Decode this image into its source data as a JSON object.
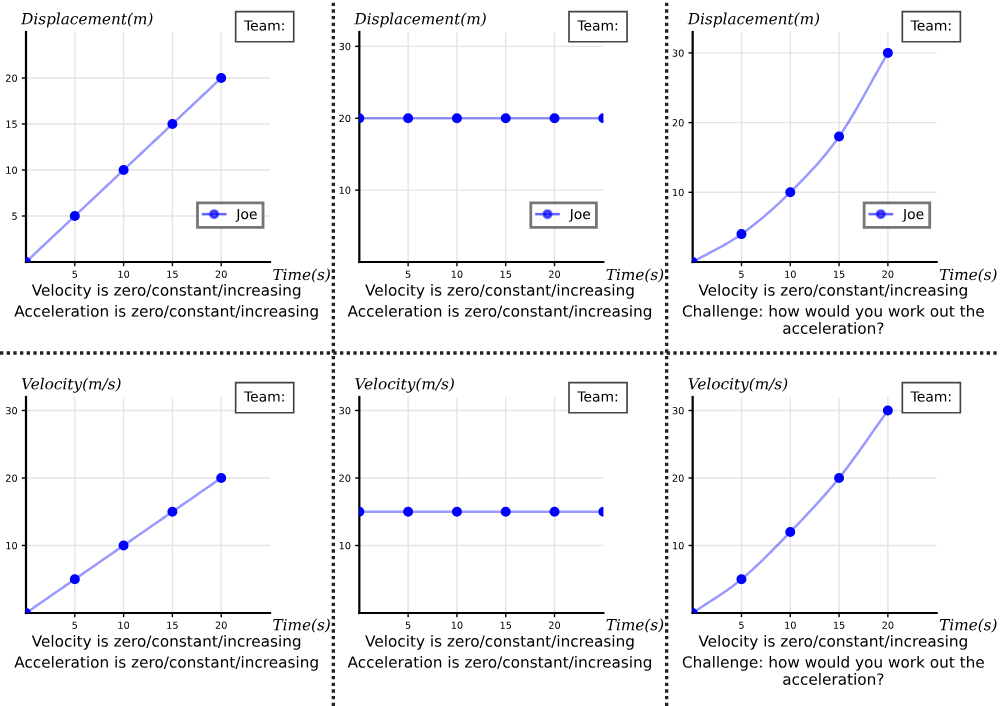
{
  "chart_data": [
    {
      "type": "line",
      "ylabel": "Displacement(m)",
      "xlabel": "Time(s)",
      "x": [
        0,
        5,
        10,
        15,
        20
      ],
      "series": [
        {
          "name": "Joe",
          "color": "#0000ff",
          "values": [
            0,
            5,
            10,
            15,
            20
          ]
        }
      ],
      "xlim": [
        0,
        25
      ],
      "ylim": [
        0,
        25
      ],
      "xticks": [
        5,
        10,
        15,
        20
      ],
      "yticks": [
        5,
        10,
        15,
        20
      ],
      "grid": true,
      "legend": "bottom right",
      "marker": "circle",
      "annotations": [
        "Team:",
        "Velocity is zero/constant/increasing",
        "Acceleration is zero/constant/increasing"
      ]
    },
    {
      "type": "line",
      "ylabel": "Displacement(m)",
      "xlabel": "Time(s)",
      "x": [
        0,
        5,
        10,
        15,
        20,
        25
      ],
      "series": [
        {
          "name": "Joe",
          "color": "#0000ff",
          "values": [
            20,
            20,
            20,
            20,
            20,
            20
          ]
        }
      ],
      "xlim": [
        0,
        25
      ],
      "ylim": [
        0,
        32
      ],
      "xticks": [
        5,
        10,
        15,
        20
      ],
      "yticks": [
        10,
        20,
        30
      ],
      "grid": true,
      "legend": "bottom right",
      "marker": "circle",
      "annotations": [
        "Team:",
        "Velocity is zero/constant/increasing",
        "Acceleration is zero/constant/increasing"
      ]
    },
    {
      "type": "line",
      "ylabel": "Displacement(m)",
      "xlabel": "Time(s)",
      "x": [
        0,
        5,
        10,
        15,
        20
      ],
      "series": [
        {
          "name": "Joe",
          "color": "#0000ff",
          "values": [
            0,
            4,
            10,
            18,
            30
          ]
        }
      ],
      "xlim": [
        0,
        25
      ],
      "ylim": [
        0,
        33
      ],
      "xticks": [
        5,
        10,
        15,
        20
      ],
      "yticks": [
        10,
        20,
        30
      ],
      "grid": true,
      "legend": "bottom right",
      "marker": "circle",
      "annotations": [
        "Team:",
        "Velocity is zero/constant/increasing",
        "Challenge: how would you work out the acceleration?"
      ]
    },
    {
      "type": "line",
      "ylabel": "Velocity(m/s)",
      "xlabel": "Time(s)",
      "x": [
        0,
        5,
        10,
        15,
        20
      ],
      "series": [
        {
          "color": "#0000ff",
          "values": [
            0,
            5,
            10,
            15,
            20
          ]
        }
      ],
      "xlim": [
        0,
        25
      ],
      "ylim": [
        0,
        32
      ],
      "xticks": [
        5,
        10,
        15,
        20
      ],
      "yticks": [
        10,
        20,
        30
      ],
      "grid": true,
      "marker": "circle",
      "annotations": [
        "Team:",
        "Velocity is zero/constant/increasing",
        "Acceleration is zero/constant/increasing"
      ]
    },
    {
      "type": "line",
      "ylabel": "Velocity(m/s)",
      "xlabel": "Time(s)",
      "x": [
        0,
        5,
        10,
        15,
        20,
        25
      ],
      "series": [
        {
          "color": "#0000ff",
          "values": [
            15,
            15,
            15,
            15,
            15,
            15
          ]
        }
      ],
      "xlim": [
        0,
        25
      ],
      "ylim": [
        0,
        32
      ],
      "xticks": [
        5,
        10,
        15,
        20
      ],
      "yticks": [
        10,
        20,
        30
      ],
      "grid": true,
      "marker": "circle",
      "annotations": [
        "Team:",
        "Velocity is zero/constant/increasing",
        "Acceleration is zero/constant/increasing"
      ]
    },
    {
      "type": "line",
      "ylabel": "Velocity(m/s)",
      "xlabel": "Time(s)",
      "x": [
        0,
        5,
        10,
        15,
        20
      ],
      "series": [
        {
          "color": "#0000ff",
          "values": [
            0,
            5,
            12,
            20,
            30
          ]
        }
      ],
      "xlim": [
        0,
        25
      ],
      "ylim": [
        0,
        32
      ],
      "xticks": [
        5,
        10,
        15,
        20
      ],
      "yticks": [
        10,
        20,
        30
      ],
      "grid": true,
      "marker": "circle",
      "annotations": [
        "Team:",
        "Velocity is zero/constant/increasing",
        "Challenge: how would you work out the acceleration?"
      ]
    }
  ]
}
